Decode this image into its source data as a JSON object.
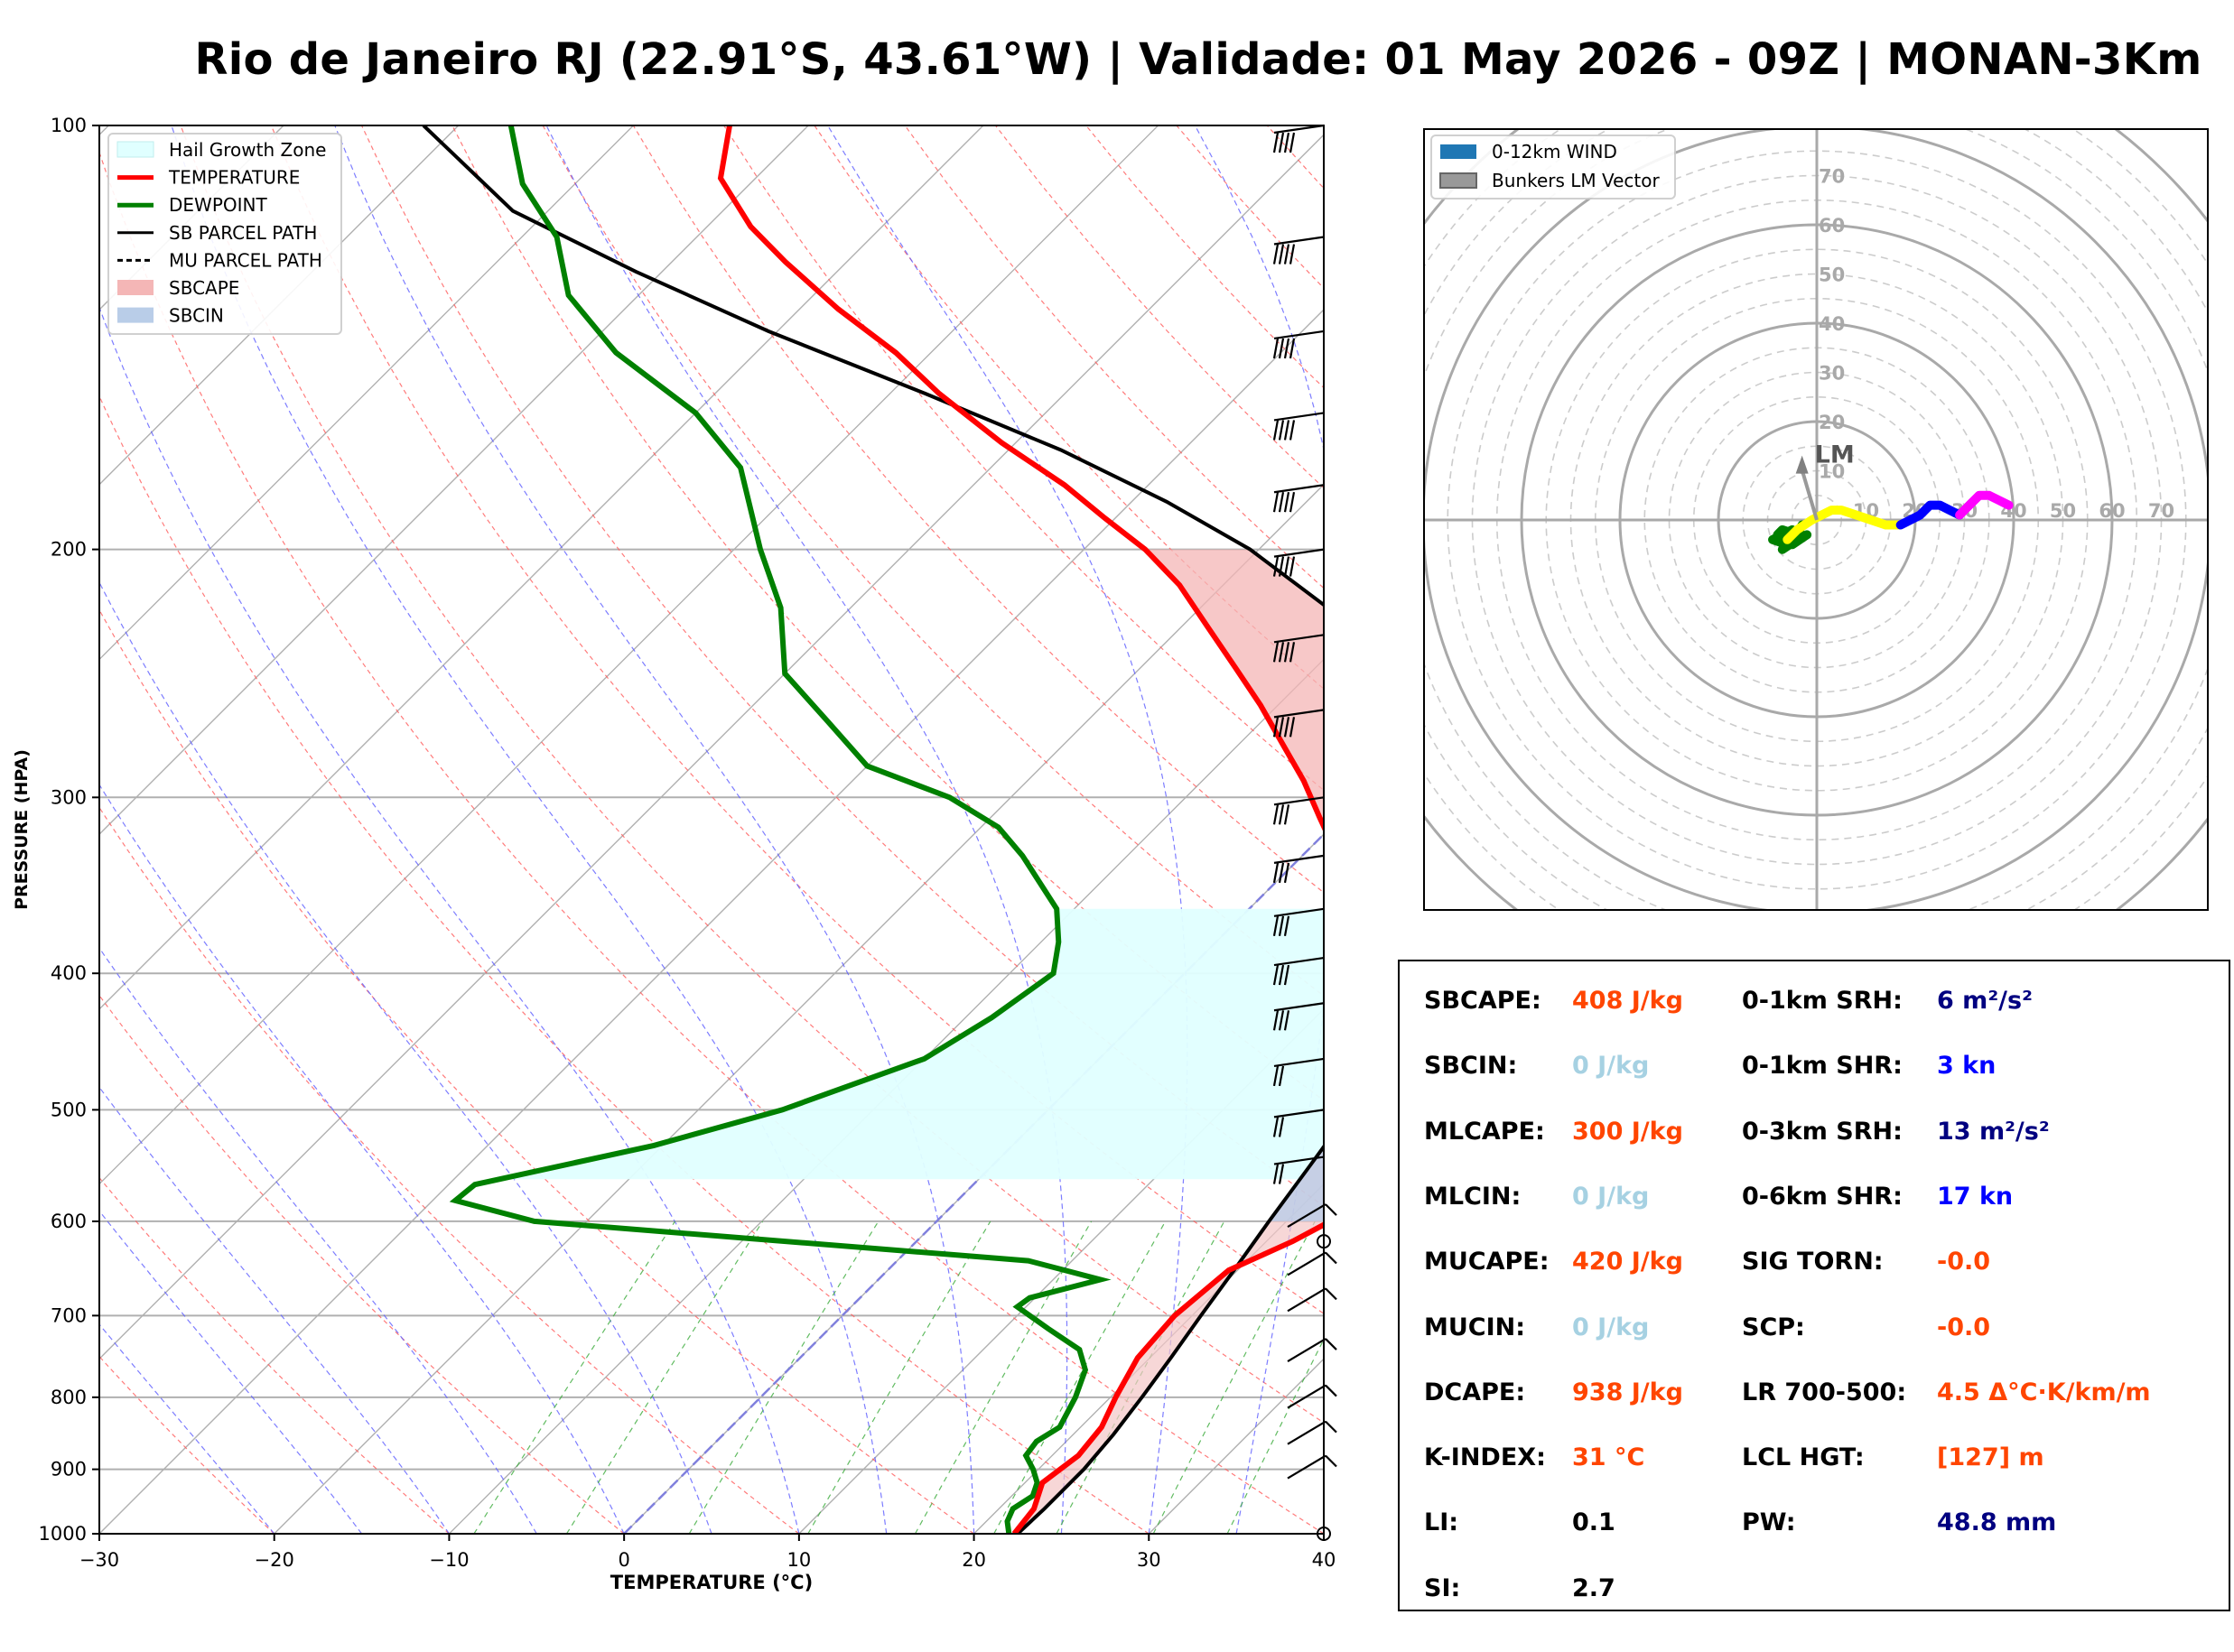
{
  "title": "Rio de Janeiro RJ (22.91°S, 43.61°W) | Validade: 01 May 2026 - 09Z | MONAN-3Km",
  "skewt": {
    "xlabel": "TEMPERATURE (°C)",
    "ylabel": "PRESSURE (HPA)",
    "x_ticks": [
      "−30",
      "−20",
      "−10",
      "0",
      "10",
      "20",
      "30",
      "40"
    ],
    "y_ticks": [
      "100",
      "200",
      "300",
      "400",
      "500",
      "600",
      "700",
      "800",
      "900",
      "1000"
    ],
    "legend": [
      {
        "label": "Hail Growth Zone",
        "color": "#e0ffff"
      },
      {
        "label": "TEMPERATURE",
        "color": "#ff0000"
      },
      {
        "label": "DEWPOINT",
        "color": "#008000"
      },
      {
        "label": "SB PARCEL PATH",
        "color": "#000000"
      },
      {
        "label": "MU PARCEL PATH",
        "color": "#000000"
      },
      {
        "label": "SBCAPE",
        "color": "#f4b6b6"
      },
      {
        "label": "SBCIN",
        "color": "#b9cde8"
      }
    ]
  },
  "hodograph": {
    "legend": [
      {
        "label": "0-12km WIND",
        "color": "#1f77b4"
      },
      {
        "label": "Bunkers LM Vector",
        "color": "#999999"
      }
    ],
    "ring_labels": [
      "10",
      "20",
      "30",
      "40",
      "50",
      "60",
      "70"
    ],
    "lm_label": "LM"
  },
  "stats": {
    "left": [
      {
        "label": "SBCAPE:",
        "value": "408 J/kg",
        "color": "orange"
      },
      {
        "label": "SBCIN:",
        "value": "0 J/kg",
        "color": "lightblue"
      },
      {
        "label": "MLCAPE:",
        "value": "300 J/kg",
        "color": "orange"
      },
      {
        "label": "MLCIN:",
        "value": "0 J/kg",
        "color": "lightblue"
      },
      {
        "label": "MUCAPE:",
        "value": "420 J/kg",
        "color": "orange"
      },
      {
        "label": "MUCIN:",
        "value": "0 J/kg",
        "color": "lightblue"
      },
      {
        "label": "DCAPE:",
        "value": "938 J/kg",
        "color": "orange"
      },
      {
        "label": "K-INDEX:",
        "value": "31 °C",
        "color": "orange"
      },
      {
        "label": "LI:",
        "value": "0.1",
        "color": "black"
      },
      {
        "label": "SI:",
        "value": "2.7",
        "color": "black"
      }
    ],
    "right": [
      {
        "label": "0-1km SRH:",
        "value": "6 m²/s²",
        "color": "navy"
      },
      {
        "label": "0-1km SHR:",
        "value": "3 kn",
        "color": "blue"
      },
      {
        "label": "0-3km SRH:",
        "value": "13 m²/s²",
        "color": "navy"
      },
      {
        "label": "0-6km SHR:",
        "value": "17 kn",
        "color": "blue"
      },
      {
        "label": "SIG TORN:",
        "value": "-0.0",
        "color": "orange"
      },
      {
        "label": "SCP:",
        "value": "-0.0",
        "color": "orange"
      },
      {
        "label": "LR 700-500:",
        "value": "4.5 Δ°C·K/km/m",
        "color": "orange"
      },
      {
        "label": "LCL HGT:",
        "value": "[127] m",
        "color": "orange"
      },
      {
        "label": "PW:",
        "value": "48.8 mm",
        "color": "navy"
      }
    ]
  },
  "chart_data": [
    {
      "type": "line",
      "chart": "skew-t",
      "xlim": [
        -30,
        40
      ],
      "ylim": [
        1000,
        100
      ],
      "y_scale": "log",
      "skew": true,
      "grid": true,
      "legend_position": "top-left",
      "series": [
        {
          "name": "TEMPERATURE",
          "points": [
            [
              22.3,
              1000
            ],
            [
              22.0,
              960
            ],
            [
              21.0,
              920
            ],
            [
              21.5,
              880
            ],
            [
              21.2,
              840
            ],
            [
              20.3,
              800
            ],
            [
              19.3,
              750
            ],
            [
              19.0,
              700
            ],
            [
              19.5,
              650
            ],
            [
              21.5,
              620
            ],
            [
              22.5,
              600
            ],
            [
              21.5,
              570
            ],
            [
              20.5,
              540
            ],
            [
              19.5,
              510
            ],
            [
              18.2,
              480
            ],
            [
              16.0,
              450
            ],
            [
              13.2,
              420
            ],
            [
              10.5,
              395
            ],
            [
              7.5,
              370
            ],
            [
              4.8,
              350
            ],
            [
              2.0,
              330
            ],
            [
              -1.2,
              310
            ],
            [
              -4.2,
              292
            ],
            [
              -7.5,
              275
            ],
            [
              -11.0,
              258
            ],
            [
              -14.5,
              243
            ],
            [
              -18.5,
              227
            ],
            [
              -22.5,
              212
            ],
            [
              -26.5,
              200
            ],
            [
              -30.6,
              190
            ],
            [
              -34.8,
              180
            ],
            [
              -40.8,
              168
            ],
            [
              -47.2,
              155
            ],
            [
              -52.0,
              145
            ],
            [
              -57.8,
              135
            ],
            [
              -63.5,
              125
            ],
            [
              -67.5,
              118
            ],
            [
              -72.0,
              109
            ],
            [
              -74.5,
              100
            ]
          ]
        },
        {
          "name": "DEWPOINT",
          "points": [
            [
              22.0,
              1000
            ],
            [
              21.2,
              980
            ],
            [
              20.8,
              960
            ],
            [
              21.2,
              940
            ],
            [
              20.7,
              920
            ],
            [
              19.7,
              900
            ],
            [
              18.5,
              880
            ],
            [
              18.3,
              860
            ],
            [
              18.8,
              840
            ],
            [
              18.0,
              800
            ],
            [
              17.0,
              765
            ],
            [
              15.5,
              740
            ],
            [
              12.5,
              715
            ],
            [
              9.5,
              690
            ],
            [
              9.7,
              680
            ],
            [
              12.7,
              660
            ],
            [
              7.5,
              640
            ],
            [
              -23.0,
              600
            ],
            [
              -28.7,
              580
            ],
            [
              -28.5,
              565
            ],
            [
              -20.5,
              530
            ],
            [
              -15.2,
              500
            ],
            [
              -10.0,
              460
            ],
            [
              -8.5,
              430
            ],
            [
              -7.5,
              400
            ],
            [
              -9.0,
              380
            ],
            [
              -11.0,
              360
            ],
            [
              -16.0,
              330
            ],
            [
              -19.0,
              315
            ],
            [
              -23.5,
              300
            ],
            [
              -30.0,
              285
            ],
            [
              -34.8,
              265
            ],
            [
              -40.0,
              245
            ],
            [
              -44.0,
              220
            ],
            [
              -48.5,
              200
            ],
            [
              -54.3,
              175
            ],
            [
              -60.0,
              160
            ],
            [
              -68.0,
              145
            ],
            [
              -74.0,
              132
            ],
            [
              -78.0,
              120
            ],
            [
              -83.0,
              110
            ],
            [
              -87.0,
              100
            ]
          ]
        },
        {
          "name": "SB PARCEL PATH",
          "points": [
            [
              22.5,
              1000
            ],
            [
              22.6,
              960
            ],
            [
              22.6,
              900
            ],
            [
              22.3,
              850
            ],
            [
              21.8,
              800
            ],
            [
              21.2,
              750
            ],
            [
              20.5,
              700
            ],
            [
              19.8,
              650
            ],
            [
              19.0,
              600
            ],
            [
              18.2,
              550
            ],
            [
              17.3,
              500
            ],
            [
              14.8,
              450
            ],
            [
              11.5,
              400
            ],
            [
              7.8,
              350
            ],
            [
              3.5,
              300
            ],
            [
              -1.0,
              270
            ],
            [
              -6.0,
              245
            ],
            [
              -12.0,
              222
            ],
            [
              -20.5,
              200
            ],
            [
              -28.0,
              185
            ],
            [
              -37.0,
              170
            ],
            [
              -48.0,
              155
            ],
            [
              -60.5,
              140
            ],
            [
              -71.5,
              127
            ],
            [
              -82.0,
              115
            ],
            [
              -92.0,
              100
            ]
          ]
        }
      ],
      "areas": [
        {
          "name": "SBCAPE",
          "between": [
            "TEMPERATURE",
            "SB PARCEL PATH"
          ],
          "pressure_range": [
            500,
            200
          ]
        },
        {
          "name": "Hail Growth Zone",
          "pressure_range": [
            560,
            360
          ]
        }
      ]
    },
    {
      "type": "line",
      "chart": "hodograph",
      "xlim": [
        -75,
        75
      ],
      "ylim": [
        -75,
        75
      ],
      "rings": [
        10,
        20,
        30,
        40,
        50,
        60,
        70
      ],
      "legend_position": "top-left",
      "series": [
        {
          "name": "0-12km WIND",
          "segments": [
            {
              "color": "#008000",
              "points": [
                [
                  -4,
                  -3
                ],
                [
                  -7,
                  -2
                ],
                [
                  -8,
                  -3
                ],
                [
                  -6,
                  -5
                ],
                [
                  -9,
                  -4
                ],
                [
                  -5,
                  -2
                ],
                [
                  -7,
                  -6
                ],
                [
                  -4,
                  -4
                ],
                [
                  -2,
                  -3
                ],
                [
                  -5,
                  -5
                ],
                [
                  -3,
                  -1
                ]
              ]
            },
            {
              "color": "#ffff00",
              "points": [
                [
                  -6,
                  -4
                ],
                [
                  -4,
                  -2
                ],
                [
                  -1,
                  0
                ],
                [
                  3,
                  2
                ],
                [
                  5,
                  2
                ],
                [
                  8,
                  1
                ],
                [
                  11,
                  0
                ],
                [
                  14,
                  -1
                ],
                [
                  17,
                  -1
                ]
              ]
            },
            {
              "color": "#0000ff",
              "points": [
                [
                  17,
                  -1
                ],
                [
                  19,
                  0
                ],
                [
                  21,
                  1
                ],
                [
                  23,
                  3
                ],
                [
                  25,
                  3
                ],
                [
                  27,
                  2
                ],
                [
                  29,
                  1
                ]
              ]
            },
            {
              "color": "#ff00ff",
              "points": [
                [
                  29,
                  1
                ],
                [
                  31,
                  3
                ],
                [
                  32,
                  4
                ],
                [
                  33,
                  5
                ],
                [
                  35,
                  5
                ],
                [
                  37,
                  4
                ],
                [
                  39,
                  3
                ]
              ]
            }
          ]
        },
        {
          "name": "Bunkers LM Vector",
          "u": -3,
          "v": 12
        }
      ]
    }
  ]
}
